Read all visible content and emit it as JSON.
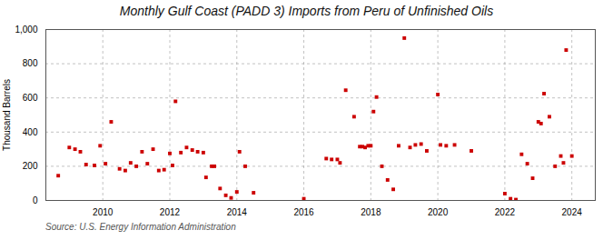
{
  "chart_data": {
    "type": "scatter",
    "title": "Monthly Gulf Coast (PADD 3) Imports from Peru of Unfinished Oils",
    "ylabel": "Thousand Barrels",
    "caption": "Source: U.S. Energy Information Administration",
    "color": "#cc0000",
    "marker": "square",
    "grid": true,
    "xlim": [
      2008.3,
      2024.7
    ],
    "xticks": [
      2010,
      2012,
      2014,
      2016,
      2018,
      2020,
      2022,
      2024
    ],
    "ylim": [
      0,
      1000
    ],
    "yticks": [
      0,
      200,
      400,
      600,
      800,
      {
        "value": 1000,
        "label": "1,000"
      }
    ],
    "x": [
      2008.67,
      2009.0,
      2009.17,
      2009.33,
      2009.5,
      2009.75,
      2009.92,
      2010.08,
      2010.25,
      2010.5,
      2010.67,
      2010.83,
      2011.0,
      2011.17,
      2011.33,
      2011.5,
      2011.67,
      2011.83,
      2012.0,
      2012.08,
      2012.17,
      2012.33,
      2012.5,
      2012.67,
      2012.83,
      2013.0,
      2013.08,
      2013.25,
      2013.33,
      2013.5,
      2013.67,
      2013.83,
      2014.0,
      2014.08,
      2014.25,
      2014.5,
      2016.0,
      2016.67,
      2016.83,
      2017.0,
      2017.08,
      2017.25,
      2017.5,
      2017.67,
      2017.75,
      2017.83,
      2017.92,
      2018.0,
      2018.08,
      2018.17,
      2018.33,
      2018.5,
      2018.67,
      2018.83,
      2019.0,
      2019.17,
      2019.33,
      2019.5,
      2019.67,
      2020.0,
      2020.08,
      2020.25,
      2020.5,
      2021.0,
      2022.0,
      2022.17,
      2022.33,
      2022.5,
      2022.67,
      2022.83,
      2023.0,
      2023.08,
      2023.17,
      2023.33,
      2023.5,
      2023.67,
      2023.75,
      2023.83,
      2024.0
    ],
    "values": [
      145,
      310,
      300,
      285,
      210,
      205,
      320,
      215,
      460,
      185,
      175,
      220,
      200,
      285,
      215,
      300,
      175,
      180,
      275,
      205,
      580,
      280,
      310,
      295,
      285,
      280,
      135,
      200,
      200,
      70,
      30,
      15,
      50,
      285,
      200,
      45,
      10,
      245,
      240,
      240,
      220,
      645,
      490,
      315,
      315,
      310,
      320,
      320,
      520,
      605,
      200,
      120,
      65,
      320,
      950,
      310,
      325,
      330,
      290,
      620,
      325,
      320,
      325,
      290,
      40,
      10,
      5,
      270,
      215,
      130,
      460,
      450,
      625,
      490,
      200,
      260,
      220,
      880,
      260
    ]
  }
}
